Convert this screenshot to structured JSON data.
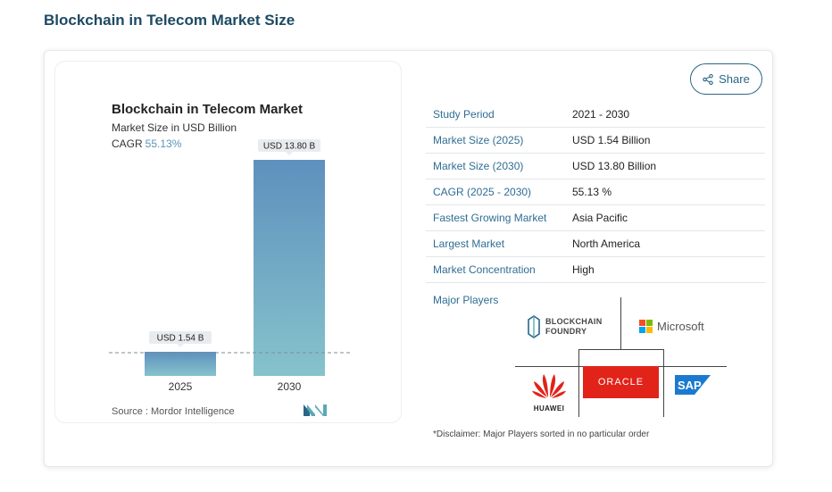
{
  "page": {
    "title": "Blockchain in Telecom Market Size"
  },
  "share": {
    "label": "Share",
    "icon": "share-icon"
  },
  "chart": {
    "title": "Blockchain in Telecom Market",
    "subtitle": "Market Size in USD Billion",
    "cagr_label": "CAGR",
    "cagr_value": "55.13%",
    "source": "Source : Mordor Intelligence",
    "bar_labels": [
      "USD 1.54 B",
      "USD 13.80 B"
    ],
    "categories": [
      "2025",
      "2030"
    ],
    "colors": {
      "bar_top": "#5e90bd",
      "bar_bottom": "#86c3cc",
      "callout": "#e9ecef"
    }
  },
  "chart_data": {
    "type": "bar",
    "categories": [
      "2025",
      "2030"
    ],
    "values": [
      1.54,
      13.8
    ],
    "title": "Blockchain in Telecom Market",
    "subtitle": "Market Size in USD Billion",
    "data_labels": [
      "USD 1.54 B",
      "USD 13.80 B"
    ],
    "annotations": [
      "CAGR 55.13%"
    ],
    "xlabel": "",
    "ylabel": "",
    "ylim": [
      0,
      14
    ],
    "grid": false,
    "legend": "none"
  },
  "table": {
    "rows": [
      {
        "label": "Study Period",
        "value": "2021 - 2030"
      },
      {
        "label": "Market Size (2025)",
        "value": "USD 1.54 Billion"
      },
      {
        "label": "Market Size (2030)",
        "value": "USD 13.80 Billion"
      },
      {
        "label": "CAGR (2025 - 2030)",
        "value": "55.13 %"
      },
      {
        "label": "Fastest Growing Market",
        "value": "Asia Pacific"
      },
      {
        "label": "Largest Market",
        "value": "North America"
      },
      {
        "label": "Market Concentration",
        "value": "High"
      }
    ]
  },
  "players": {
    "label": "Major Players",
    "logos": [
      {
        "name": "BLOCKCHAIN FOUNDRY",
        "line1": "BLOCKCHAIN",
        "line2": "FOUNDRY",
        "icon": "blockchain-foundry-logo"
      },
      {
        "name": "Microsoft",
        "icon": "microsoft-logo"
      },
      {
        "name": "HUAWEI",
        "icon": "huawei-logo"
      },
      {
        "name": "ORACLE",
        "icon": "oracle-logo"
      },
      {
        "name": "SAP",
        "icon": "sap-logo"
      }
    ],
    "disclaimer": "*Disclaimer: Major Players sorted in no particular order"
  }
}
